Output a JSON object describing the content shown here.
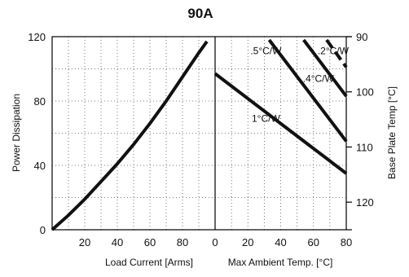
{
  "chart_data": {
    "title": "90A",
    "left_panel": {
      "type": "line",
      "xlabel": "Load Current  [Arms]",
      "ylabel": "Power Dissipation",
      "xlim": [
        0,
        100
      ],
      "ylim": [
        0,
        120
      ],
      "xticks": [
        "20",
        "40",
        "60",
        "80"
      ],
      "yticks": [
        "0",
        "40",
        "80",
        "120"
      ],
      "series": [
        {
          "x": [
            0,
            10,
            20,
            30,
            40,
            50,
            60,
            70,
            80,
            90,
            95
          ],
          "y": [
            0,
            9,
            19,
            30,
            41,
            53,
            66,
            80,
            95,
            110,
            117
          ]
        }
      ]
    },
    "right_panel": {
      "type": "line",
      "xlabel": "Max Ambient Temp. [°C]",
      "ylabel": "Base Plate Temp [°C]",
      "xlim": [
        0,
        80
      ],
      "ylim_left": [
        0,
        120
      ],
      "ylim_right": [
        125,
        90
      ],
      "xticks": [
        "0",
        "20",
        "40",
        "60",
        "80"
      ],
      "yticks_right": [
        "90",
        "100",
        "110",
        "120"
      ],
      "series": [
        {
          "name": "1°C/W",
          "x": [
            0,
            80
          ],
          "y": [
            97,
            35
          ]
        },
        {
          "name": ".5°C/W",
          "x": [
            33,
            80
          ],
          "y": [
            118,
            55
          ]
        },
        {
          "name": ".4°C/W",
          "x": [
            54,
            80
          ],
          "y": [
            118,
            83
          ]
        },
        {
          "name": ".2°C/W",
          "x": [
            68,
            80
          ],
          "y": [
            118,
            101
          ]
        }
      ],
      "label_positions_data": [
        {
          "name": "1°C/W",
          "x": 31,
          "y": 67
        },
        {
          "name": ".5°C/W",
          "x": 31,
          "y": 109
        },
        {
          "name": ".4°C/W",
          "x": 63,
          "y": 92
        },
        {
          "name": ".2°C/W",
          "x": 72,
          "y": 109
        }
      ]
    }
  },
  "colors": {
    "line": "#111111",
    "grid": "#555555"
  }
}
